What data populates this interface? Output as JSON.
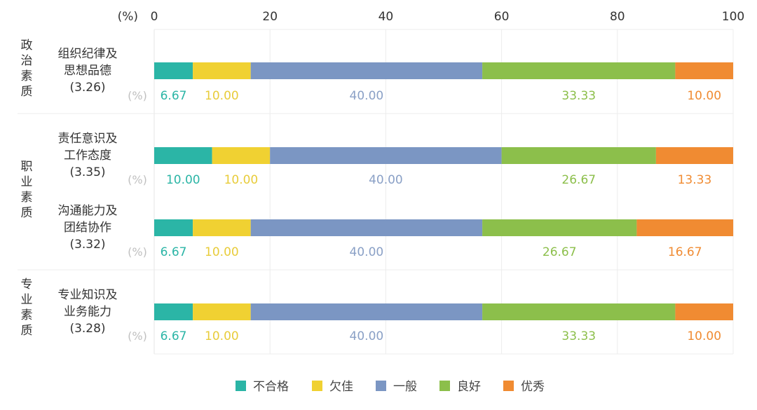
{
  "chart_data": {
    "type": "bar",
    "orientation": "horizontal",
    "stacked": true,
    "axis_unit_label": "(%)",
    "row_unit_label": "(%)",
    "xlim": [
      0,
      100
    ],
    "x_ticks": [
      0,
      20,
      40,
      60,
      80,
      100
    ],
    "grid": true,
    "legend_position": "bottom",
    "groups": [
      {
        "label": [
          "政",
          "治",
          "素",
          "质"
        ],
        "rows": [
          0
        ]
      },
      {
        "label": [
          "职",
          "业",
          "素",
          "质"
        ],
        "rows": [
          1,
          2
        ]
      },
      {
        "label": [
          "专",
          "业",
          "素",
          "质"
        ],
        "rows": [
          3
        ]
      }
    ],
    "categories": [
      {
        "lines": [
          "组织纪律及",
          "思想品德",
          "(3.26)"
        ]
      },
      {
        "lines": [
          "责任意识及",
          "工作态度",
          "(3.35)"
        ]
      },
      {
        "lines": [
          "沟通能力及",
          "团结协作",
          "(3.32)"
        ]
      },
      {
        "lines": [
          "专业知识及",
          "业务能力",
          "(3.28)"
        ]
      }
    ],
    "series": [
      {
        "name": "不合格",
        "color": "#2bb5a6",
        "label_color": "#2bb5a6",
        "values": [
          6.67,
          10.0,
          6.67,
          6.67
        ]
      },
      {
        "name": "欠佳",
        "color": "#f0d132",
        "label_color": "#e8cc3a",
        "values": [
          10.0,
          10.0,
          10.0,
          10.0
        ]
      },
      {
        "name": "一般",
        "color": "#7b96c3",
        "label_color": "#8aa0c6",
        "values": [
          40.0,
          40.0,
          40.0,
          40.0
        ]
      },
      {
        "name": "良好",
        "color": "#8cbf4b",
        "label_color": "#8cbf4b",
        "values": [
          33.33,
          26.67,
          26.67,
          33.33
        ]
      },
      {
        "name": "优秀",
        "color": "#f08b32",
        "label_color": "#f08b32",
        "values": [
          10.0,
          13.33,
          16.67,
          10.0
        ]
      }
    ]
  }
}
